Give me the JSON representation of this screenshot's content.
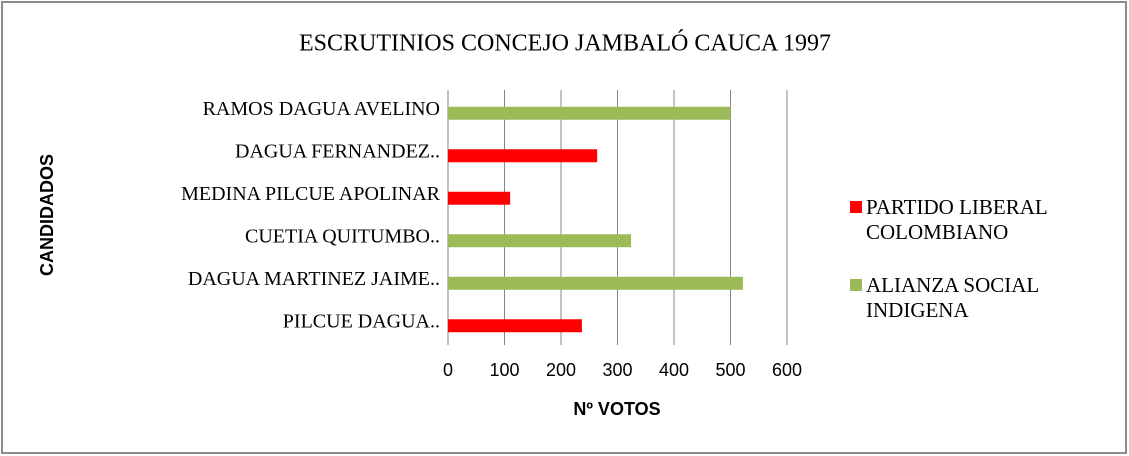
{
  "chart_data": {
    "type": "bar",
    "orientation": "horizontal",
    "title": "ESCRUTINIOS CONCEJO JAMBALÓ CAUCA 1997",
    "x_label": "Nº VOTOS",
    "y_label": "CANDIDADOS",
    "categories": [
      "RAMOS DAGUA AVELINO",
      "DAGUA FERNANDEZ..",
      "MEDINA PILCUE APOLINAR",
      "CUETIA QUITUMBO..",
      "DAGUA MARTINEZ JAIME..",
      "PILCUE DAGUA.."
    ],
    "series": [
      {
        "name": "PARTIDO LIBERAL COLOMBIANO",
        "color": "#ff0000",
        "values": [
          null,
          264,
          110,
          null,
          null,
          237
        ]
      },
      {
        "name": "ALIANZA SOCIAL INDIGENA",
        "color": "#9bbb59",
        "values": [
          500,
          null,
          null,
          324,
          522,
          null
        ]
      }
    ],
    "xlim": [
      0,
      600
    ],
    "xticks": [
      0,
      100,
      200,
      300,
      400,
      500,
      600
    ],
    "grid": true,
    "legend": "right"
  }
}
